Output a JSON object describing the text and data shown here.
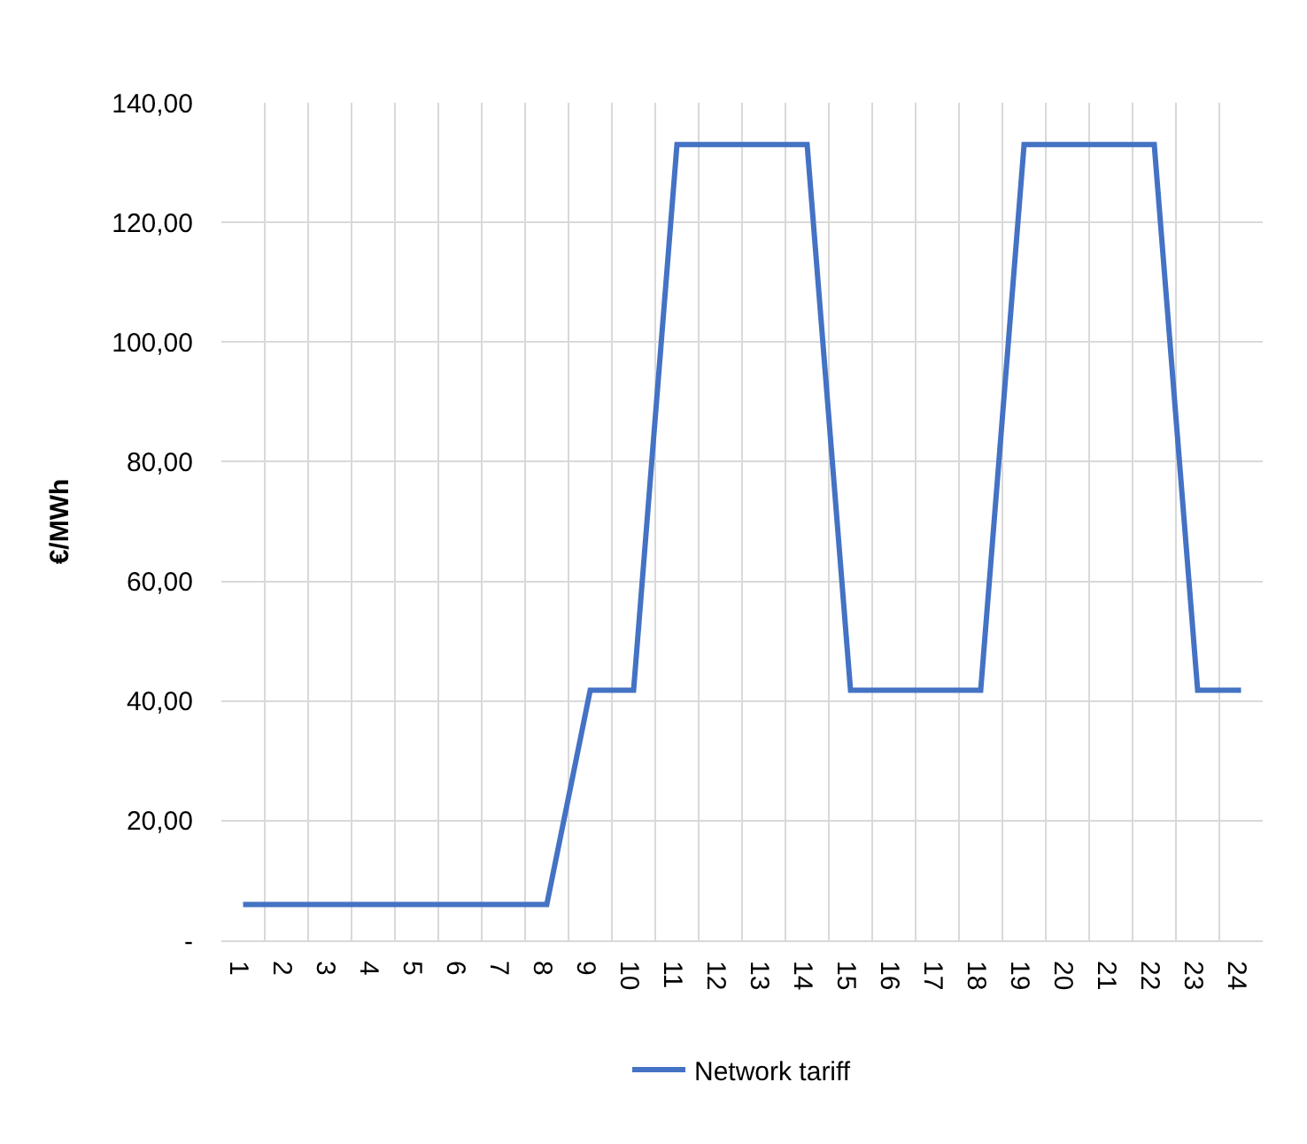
{
  "chart_data": {
    "type": "line",
    "ylabel": "€/MWh",
    "categories": [
      "1",
      "2",
      "3",
      "4",
      "5",
      "6",
      "7",
      "8",
      "9",
      "10",
      "11",
      "12",
      "13",
      "14",
      "15",
      "16",
      "17",
      "18",
      "19",
      "20",
      "21",
      "22",
      "23",
      "24"
    ],
    "series": [
      {
        "name": "Network tariff",
        "color": "#4472c4",
        "values": [
          6,
          6,
          6,
          6,
          6,
          6,
          6,
          6,
          41.8,
          41.8,
          133,
          133,
          133,
          133,
          41.8,
          41.8,
          41.8,
          41.8,
          133,
          133,
          133,
          133,
          41.8,
          41.8
        ]
      }
    ],
    "ylim": [
      0,
      140
    ],
    "yticks": [
      {
        "value": 0,
        "label": "-"
      },
      {
        "value": 20,
        "label": "20,00"
      },
      {
        "value": 40,
        "label": "40,00"
      },
      {
        "value": 60,
        "label": "60,00"
      },
      {
        "value": 80,
        "label": "80,00"
      },
      {
        "value": 100,
        "label": "100,00"
      },
      {
        "value": 120,
        "label": "120,00"
      },
      {
        "value": 140,
        "label": "140,00"
      }
    ],
    "grid": true,
    "legend": "bottom",
    "marker": "none",
    "line_style": "solid"
  }
}
